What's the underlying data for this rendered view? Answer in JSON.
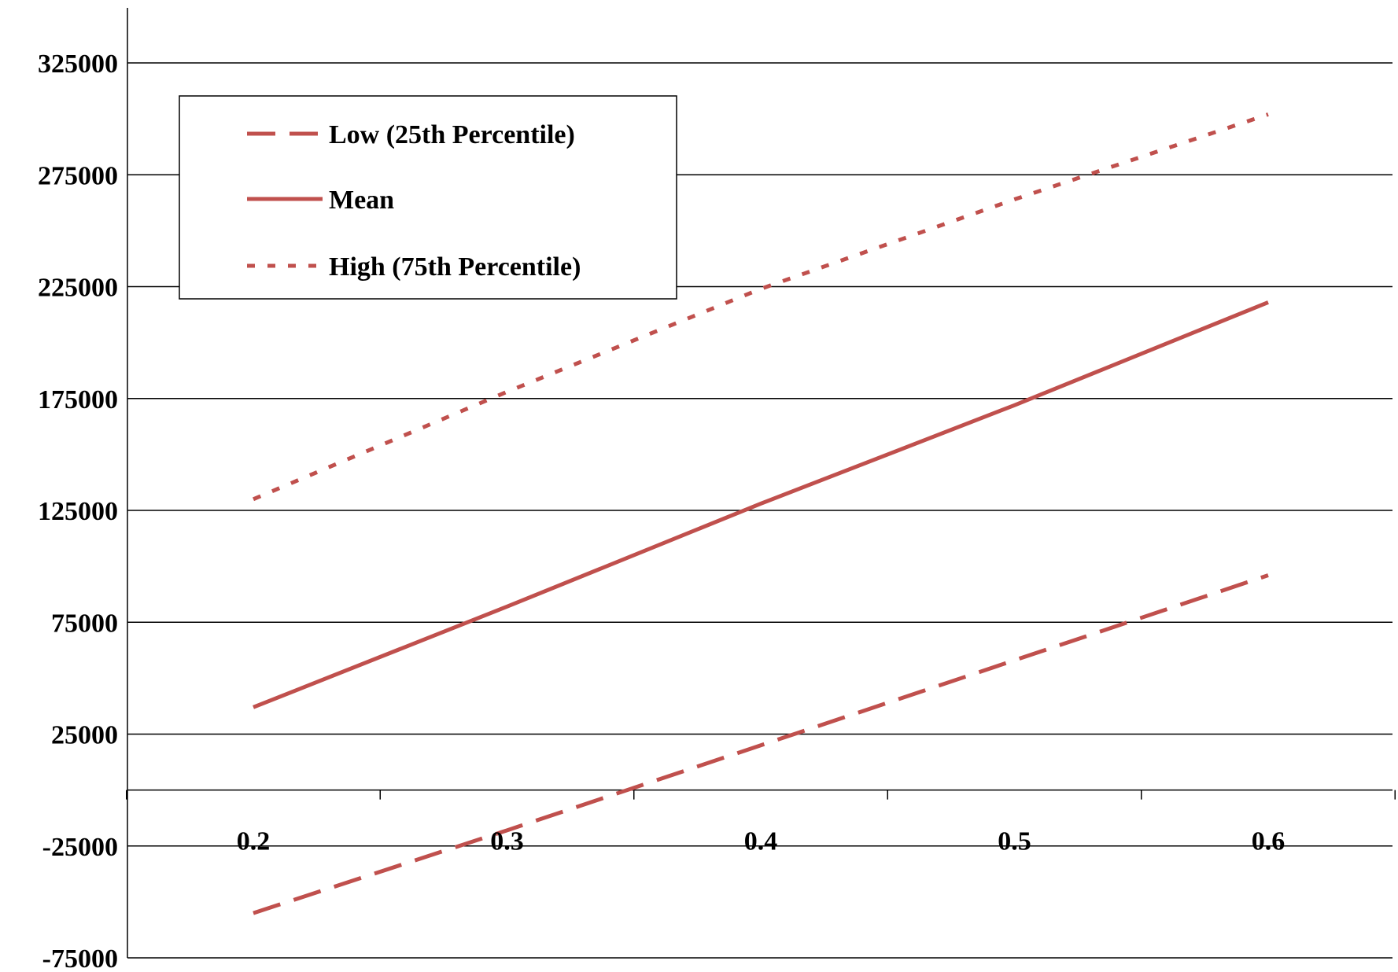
{
  "chart_data": {
    "type": "line",
    "title": "",
    "xlabel": "",
    "ylabel": "",
    "x": [
      0.2,
      0.3,
      0.4,
      0.5,
      0.6
    ],
    "x_tick_labels": [
      "0.2",
      "0.3",
      "0.4",
      "0.5",
      "0.6"
    ],
    "xlim": [
      0.15,
      0.65
    ],
    "ylim": [
      -75000,
      350000
    ],
    "y_tick_values": [
      -75000,
      -25000,
      25000,
      75000,
      125000,
      175000,
      225000,
      275000,
      325000
    ],
    "y_tick_labels": [
      "-75000",
      "-25000",
      "25000",
      "75000",
      "125000",
      "175000",
      "225000",
      "275000",
      "325000"
    ],
    "grid": "horizontal",
    "legend_position": "top-left",
    "series": [
      {
        "name": "Low (25th Percentile)",
        "style": "dashed",
        "values": [
          -55000,
          -18000,
          20000,
          58000,
          96000
        ]
      },
      {
        "name": "Mean",
        "style": "solid",
        "values": [
          37000,
          82000,
          128000,
          172000,
          218000
        ]
      },
      {
        "name": "High (75th Percentile)",
        "style": "dotted",
        "values": [
          130000,
          178000,
          224000,
          264000,
          302000
        ]
      }
    ],
    "colors": {
      "series": "#c0504d",
      "axis": "#000000",
      "grid": "#000000"
    }
  }
}
